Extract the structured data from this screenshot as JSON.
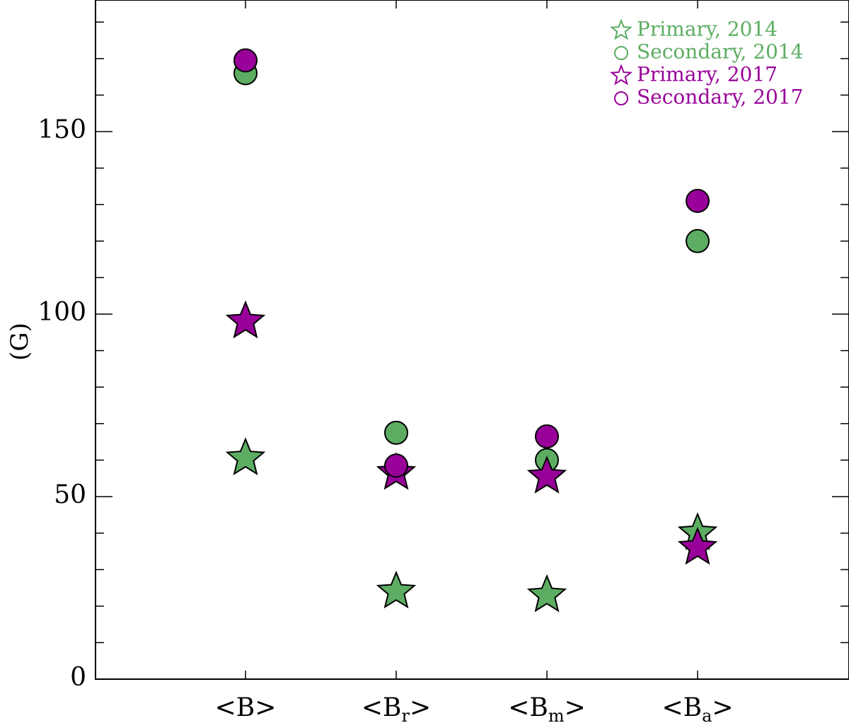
{
  "chart_data": {
    "type": "scatter",
    "title": "",
    "xlabel": "",
    "ylabel": "(G)",
    "ylim": [
      0,
      180
    ],
    "yticks_major": [
      0,
      50,
      100,
      150
    ],
    "ytick_minor_step": 10,
    "categories": [
      {
        "base": "<B",
        "sub": "",
        "close": ">"
      },
      {
        "base": "<B",
        "sub": "r",
        "close": ">"
      },
      {
        "base": "<B",
        "sub": "m",
        "close": ">"
      },
      {
        "base": "<B",
        "sub": "a",
        "close": ">"
      }
    ],
    "colors": {
      "y2014": "#5cad62",
      "y2017": "#990099"
    },
    "legend_position": "top-right",
    "series": [
      {
        "name": "Primary, 2014",
        "marker": "star",
        "color": "#5cad62",
        "values": [
          60.5,
          24,
          23,
          40
        ]
      },
      {
        "name": "Secondary, 2014",
        "marker": "circle",
        "color": "#5cad62",
        "values": [
          166,
          67.5,
          60,
          120
        ]
      },
      {
        "name": "Primary, 2017",
        "marker": "star",
        "color": "#990099",
        "values": [
          98,
          56.5,
          55.5,
          36
        ]
      },
      {
        "name": "Secondary, 2017",
        "marker": "circle",
        "color": "#990099",
        "values": [
          169.5,
          58.5,
          66.5,
          131
        ]
      }
    ]
  }
}
